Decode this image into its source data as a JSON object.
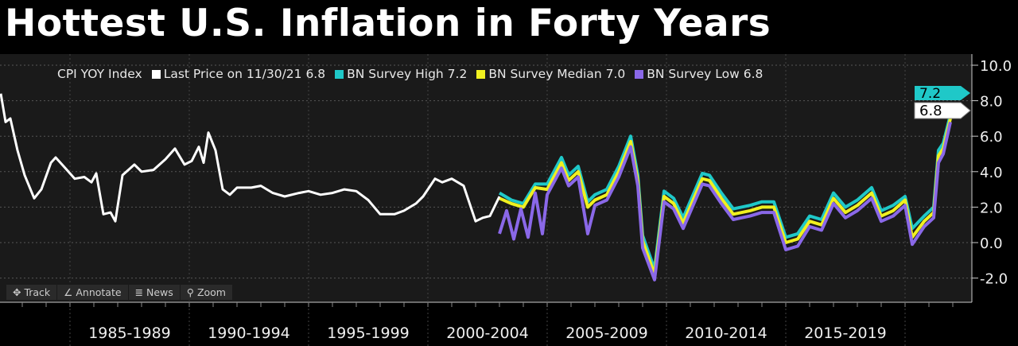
{
  "title": "Hottest U.S. Inflation in Forty Years",
  "toolbar": {
    "track": "Track",
    "annotate": "Annotate",
    "news": "News",
    "zoom": "Zoom"
  },
  "colors": {
    "cpi": "#ffffff",
    "high": "#1fc8c8",
    "median": "#f0f020",
    "low": "#8a68e8"
  },
  "chart_data": {
    "type": "line",
    "title": "Hottest U.S. Inflation in Forty Years",
    "legend": {
      "prefix": "CPI YOY Index",
      "position": "top",
      "entries": [
        "Last Price on 11/30/21 6.8",
        "BN Survey High 7.2",
        "BN Survey Median 7.0",
        "BN Survey Low 6.8"
      ]
    },
    "ylim": [
      -3,
      10.5
    ],
    "yticks": [
      "10.0",
      "8.0",
      "6.0",
      "4.0",
      "2.0",
      "0.0",
      "-2.0"
    ],
    "ytick_values": [
      10,
      8,
      6,
      4,
      2,
      0,
      -2
    ],
    "xlim": [
      1982.1,
      2022.3
    ],
    "xcategories": [
      "1985-1989",
      "1990-1994",
      "1995-1999",
      "2000-2004",
      "2005-2009",
      "2010-2014",
      "2015-2019"
    ],
    "last_value_tags": [
      "7.2",
      "6.8"
    ],
    "series": [
      {
        "name": "Last Price",
        "points": [
          [
            1982.1,
            8.4
          ],
          [
            1982.3,
            6.8
          ],
          [
            1982.5,
            7.0
          ],
          [
            1982.8,
            5.2
          ],
          [
            1983.1,
            3.8
          ],
          [
            1983.5,
            2.5
          ],
          [
            1983.8,
            3.0
          ],
          [
            1984.2,
            4.5
          ],
          [
            1984.4,
            4.8
          ],
          [
            1984.8,
            4.2
          ],
          [
            1985.2,
            3.6
          ],
          [
            1985.6,
            3.7
          ],
          [
            1985.9,
            3.4
          ],
          [
            1986.1,
            3.9
          ],
          [
            1986.4,
            1.6
          ],
          [
            1986.7,
            1.7
          ],
          [
            1986.9,
            1.2
          ],
          [
            1987.2,
            3.8
          ],
          [
            1987.7,
            4.4
          ],
          [
            1988.0,
            4.0
          ],
          [
            1988.5,
            4.1
          ],
          [
            1989.0,
            4.7
          ],
          [
            1989.4,
            5.3
          ],
          [
            1989.8,
            4.4
          ],
          [
            1990.1,
            4.6
          ],
          [
            1990.4,
            5.4
          ],
          [
            1990.6,
            4.5
          ],
          [
            1990.8,
            6.2
          ],
          [
            1991.1,
            5.2
          ],
          [
            1991.4,
            3.0
          ],
          [
            1991.7,
            2.7
          ],
          [
            1992.0,
            3.1
          ],
          [
            1992.6,
            3.1
          ],
          [
            1993.0,
            3.2
          ],
          [
            1993.5,
            2.8
          ],
          [
            1994.0,
            2.6
          ],
          [
            1994.6,
            2.8
          ],
          [
            1995.0,
            2.9
          ],
          [
            1995.5,
            2.7
          ],
          [
            1996.0,
            2.8
          ],
          [
            1996.5,
            3.0
          ],
          [
            1997.0,
            2.9
          ],
          [
            1997.5,
            2.4
          ],
          [
            1998.0,
            1.6
          ],
          [
            1998.6,
            1.6
          ],
          [
            1999.0,
            1.8
          ],
          [
            1999.5,
            2.2
          ],
          [
            1999.8,
            2.6
          ],
          [
            2000.3,
            3.6
          ],
          [
            2000.6,
            3.4
          ],
          [
            2001.0,
            3.6
          ],
          [
            2001.5,
            3.2
          ],
          [
            2001.8,
            2.0
          ],
          [
            2002.0,
            1.2
          ],
          [
            2002.3,
            1.4
          ],
          [
            2002.6,
            1.5
          ],
          [
            2003.0,
            2.6
          ]
        ]
      },
      {
        "name": "BN Survey High",
        "points": [
          [
            2003.0,
            2.8
          ],
          [
            2003.5,
            2.4
          ],
          [
            2004.0,
            2.2
          ],
          [
            2004.5,
            3.3
          ],
          [
            2005.0,
            3.3
          ],
          [
            2005.6,
            4.8
          ],
          [
            2005.9,
            3.8
          ],
          [
            2006.3,
            4.3
          ],
          [
            2006.7,
            2.3
          ],
          [
            2007.0,
            2.7
          ],
          [
            2007.5,
            3.0
          ],
          [
            2008.0,
            4.3
          ],
          [
            2008.5,
            6.0
          ],
          [
            2008.8,
            3.8
          ],
          [
            2009.0,
            0.4
          ],
          [
            2009.5,
            -1.5
          ],
          [
            2009.9,
            2.9
          ],
          [
            2010.3,
            2.5
          ],
          [
            2010.7,
            1.4
          ],
          [
            2011.5,
            3.9
          ],
          [
            2011.8,
            3.8
          ],
          [
            2012.3,
            2.8
          ],
          [
            2012.8,
            1.9
          ],
          [
            2013.5,
            2.1
          ],
          [
            2014.0,
            2.3
          ],
          [
            2014.5,
            2.3
          ],
          [
            2015.0,
            0.3
          ],
          [
            2015.5,
            0.5
          ],
          [
            2016.0,
            1.5
          ],
          [
            2016.5,
            1.3
          ],
          [
            2017.0,
            2.8
          ],
          [
            2017.5,
            2.0
          ],
          [
            2018.0,
            2.4
          ],
          [
            2018.6,
            3.1
          ],
          [
            2019.0,
            1.8
          ],
          [
            2019.5,
            2.1
          ],
          [
            2020.0,
            2.6
          ],
          [
            2020.3,
            0.8
          ],
          [
            2020.8,
            1.5
          ],
          [
            2021.2,
            2.0
          ],
          [
            2021.4,
            5.2
          ],
          [
            2021.6,
            5.6
          ],
          [
            2021.9,
            7.2
          ]
        ]
      },
      {
        "name": "BN Survey Median",
        "points": [
          [
            2003.0,
            2.5
          ],
          [
            2003.5,
            2.2
          ],
          [
            2004.0,
            2.0
          ],
          [
            2004.5,
            3.1
          ],
          [
            2005.0,
            3.0
          ],
          [
            2005.6,
            4.5
          ],
          [
            2005.9,
            3.5
          ],
          [
            2006.3,
            4.0
          ],
          [
            2006.7,
            2.0
          ],
          [
            2007.0,
            2.4
          ],
          [
            2007.5,
            2.7
          ],
          [
            2008.0,
            4.0
          ],
          [
            2008.5,
            5.7
          ],
          [
            2008.8,
            3.5
          ],
          [
            2009.0,
            0.1
          ],
          [
            2009.5,
            -1.8
          ],
          [
            2009.9,
            2.6
          ],
          [
            2010.3,
            2.2
          ],
          [
            2010.7,
            1.1
          ],
          [
            2011.5,
            3.6
          ],
          [
            2011.8,
            3.5
          ],
          [
            2012.3,
            2.5
          ],
          [
            2012.8,
            1.6
          ],
          [
            2013.5,
            1.8
          ],
          [
            2014.0,
            2.0
          ],
          [
            2014.5,
            2.0
          ],
          [
            2015.0,
            0.0
          ],
          [
            2015.5,
            0.2
          ],
          [
            2016.0,
            1.2
          ],
          [
            2016.5,
            1.0
          ],
          [
            2017.0,
            2.5
          ],
          [
            2017.5,
            1.7
          ],
          [
            2018.0,
            2.1
          ],
          [
            2018.6,
            2.8
          ],
          [
            2019.0,
            1.5
          ],
          [
            2019.5,
            1.8
          ],
          [
            2020.0,
            2.4
          ],
          [
            2020.3,
            0.3
          ],
          [
            2020.8,
            1.2
          ],
          [
            2021.2,
            1.7
          ],
          [
            2021.4,
            4.9
          ],
          [
            2021.6,
            5.3
          ],
          [
            2021.9,
            7.0
          ]
        ]
      },
      {
        "name": "BN Survey Low",
        "points": [
          [
            2003.0,
            0.5
          ],
          [
            2003.3,
            1.8
          ],
          [
            2003.6,
            0.2
          ],
          [
            2003.9,
            1.9
          ],
          [
            2004.2,
            0.3
          ],
          [
            2004.5,
            2.8
          ],
          [
            2004.8,
            0.5
          ],
          [
            2005.0,
            2.7
          ],
          [
            2005.6,
            4.2
          ],
          [
            2005.9,
            3.2
          ],
          [
            2006.3,
            3.7
          ],
          [
            2006.7,
            0.5
          ],
          [
            2007.0,
            2.1
          ],
          [
            2007.5,
            2.4
          ],
          [
            2008.0,
            3.7
          ],
          [
            2008.5,
            5.4
          ],
          [
            2008.8,
            3.2
          ],
          [
            2009.0,
            -0.3
          ],
          [
            2009.5,
            -2.1
          ],
          [
            2009.9,
            2.3
          ],
          [
            2010.3,
            1.9
          ],
          [
            2010.7,
            0.8
          ],
          [
            2011.5,
            3.3
          ],
          [
            2011.8,
            3.2
          ],
          [
            2012.3,
            2.2
          ],
          [
            2012.8,
            1.3
          ],
          [
            2013.5,
            1.5
          ],
          [
            2014.0,
            1.7
          ],
          [
            2014.5,
            1.7
          ],
          [
            2015.0,
            -0.4
          ],
          [
            2015.5,
            -0.2
          ],
          [
            2016.0,
            0.9
          ],
          [
            2016.5,
            0.7
          ],
          [
            2017.0,
            2.2
          ],
          [
            2017.5,
            1.4
          ],
          [
            2018.0,
            1.8
          ],
          [
            2018.6,
            2.5
          ],
          [
            2019.0,
            1.2
          ],
          [
            2019.5,
            1.5
          ],
          [
            2020.0,
            2.1
          ],
          [
            2020.3,
            -0.1
          ],
          [
            2020.8,
            0.9
          ],
          [
            2021.2,
            1.4
          ],
          [
            2021.4,
            4.5
          ],
          [
            2021.6,
            5.0
          ],
          [
            2021.9,
            6.8
          ]
        ]
      }
    ]
  }
}
